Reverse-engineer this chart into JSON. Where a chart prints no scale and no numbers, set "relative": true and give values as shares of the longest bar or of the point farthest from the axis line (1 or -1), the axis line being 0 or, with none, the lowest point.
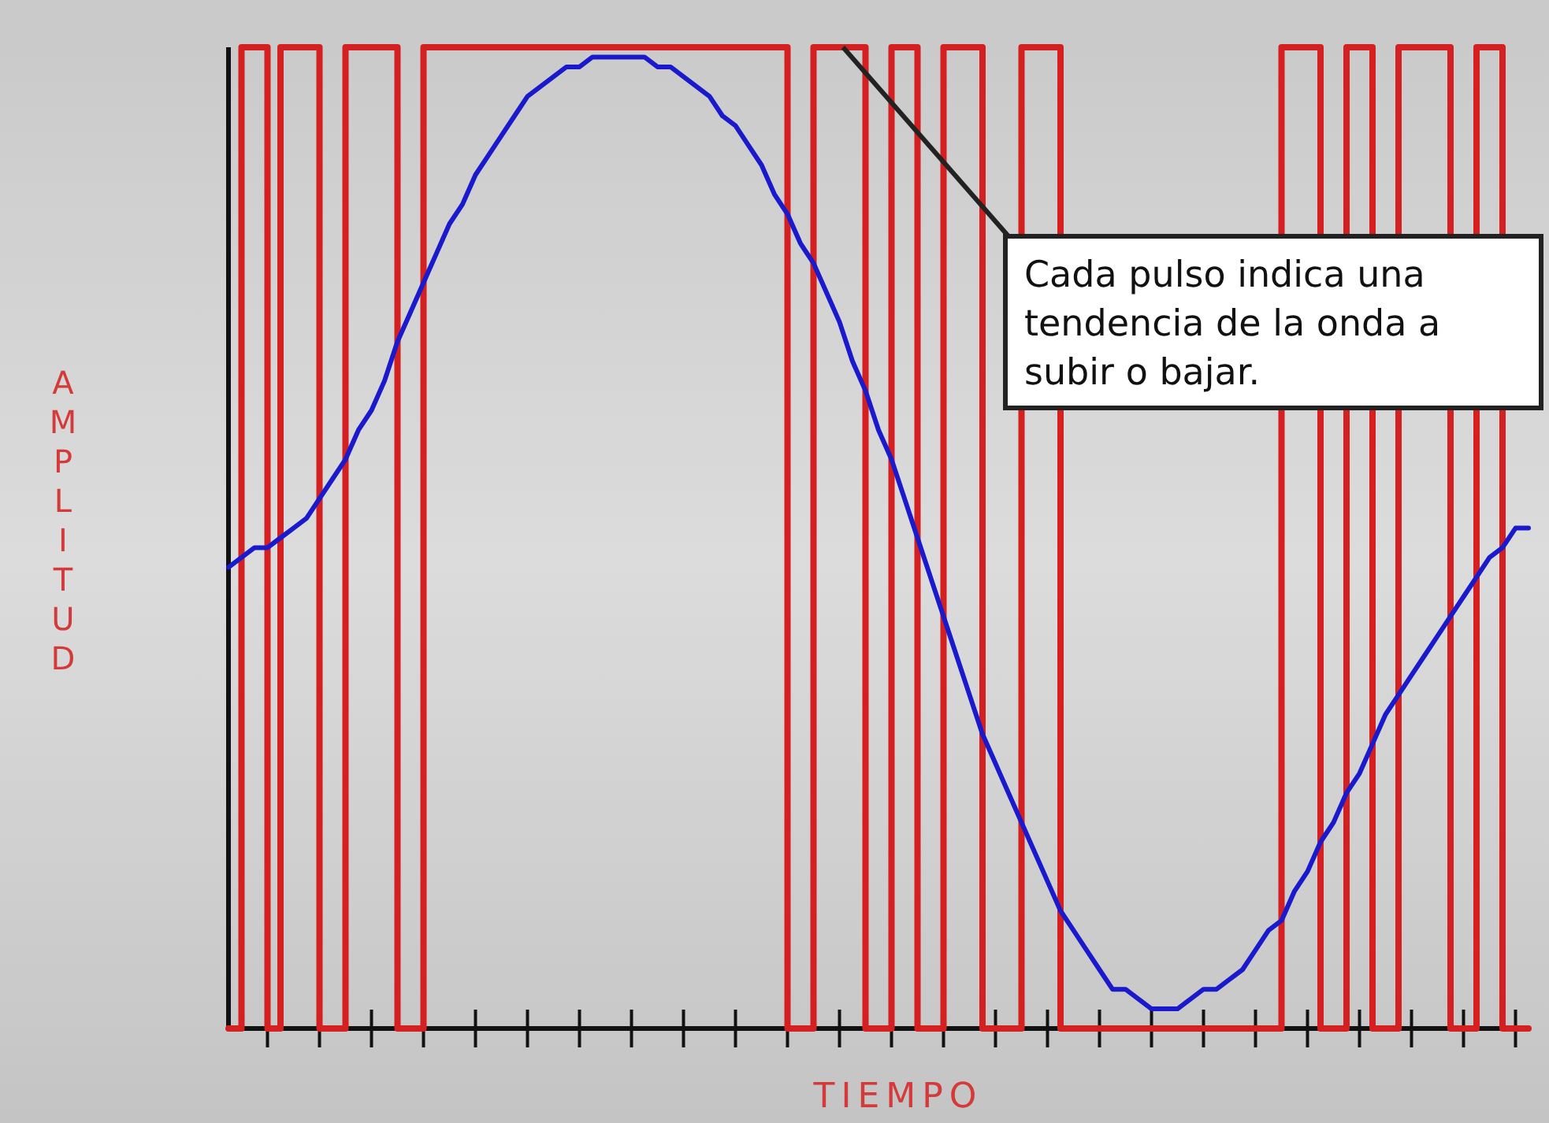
{
  "chart_data": {
    "type": "line",
    "relative": true,
    "xlabel": "TIEMPO",
    "ylabel": "AMPLITUD",
    "grid": false,
    "categories": [
      null,
      null,
      null,
      null,
      null,
      null,
      null,
      null,
      null,
      null,
      null,
      null,
      null,
      null,
      null,
      null,
      null,
      null,
      null,
      null,
      null,
      null,
      null,
      null,
      null,
      null,
      null,
      null,
      null,
      null,
      null,
      null,
      null,
      null,
      null,
      null,
      null,
      null,
      null,
      null,
      null,
      null,
      null,
      null,
      null,
      null,
      null,
      null,
      null,
      null,
      null,
      null,
      null,
      null,
      null,
      null,
      null,
      null,
      null,
      null,
      null,
      null,
      null,
      null,
      null,
      null,
      null,
      null,
      null,
      null,
      null,
      null,
      null,
      null,
      null,
      null,
      null,
      null,
      null,
      null,
      null,
      null,
      null,
      null,
      null,
      null,
      null,
      null,
      null,
      null,
      null,
      null,
      null,
      null,
      null,
      null,
      null,
      null,
      null,
      null,
      null
    ],
    "annotations": [
      "Cada pulso indica una tendencia de la onda a subir o bajar."
    ],
    "series": [
      {
        "type": "step",
        "color": "#d42020",
        "values": [
          0,
          1,
          1,
          0,
          1,
          1,
          1,
          0,
          0,
          1,
          1,
          1,
          1,
          0,
          0,
          1,
          1,
          1,
          1,
          1,
          1,
          1,
          1,
          1,
          1,
          1,
          1,
          1,
          1,
          1,
          1,
          1,
          1,
          1,
          1,
          1,
          1,
          1,
          1,
          1,
          1,
          1,
          1,
          0,
          0,
          1,
          1,
          1,
          1,
          0,
          0,
          1,
          1,
          0,
          0,
          1,
          1,
          1,
          0,
          0,
          0,
          1,
          1,
          1,
          0,
          0,
          0,
          0,
          0,
          0,
          0,
          0,
          0,
          0,
          0,
          0,
          0,
          0,
          0,
          0,
          0,
          1,
          1,
          1,
          0,
          0,
          1,
          1,
          0,
          0,
          1,
          1,
          1,
          1,
          0,
          0,
          1,
          1,
          0,
          0,
          0
        ]
      },
      {
        "color": "#1a1acc",
        "values": [
          0.47,
          0.48,
          0.49,
          0.49,
          0.5,
          0.51,
          0.52,
          0.54,
          0.56,
          0.58,
          0.61,
          0.63,
          0.66,
          0.7,
          0.73,
          0.76,
          0.79,
          0.82,
          0.84,
          0.87,
          0.89,
          0.91,
          0.93,
          0.95,
          0.96,
          0.97,
          0.98,
          0.98,
          0.99,
          0.99,
          0.99,
          0.99,
          0.99,
          0.98,
          0.98,
          0.97,
          0.96,
          0.95,
          0.93,
          0.92,
          0.9,
          0.88,
          0.85,
          0.83,
          0.8,
          0.78,
          0.75,
          0.72,
          0.68,
          0.65,
          0.61,
          0.58,
          0.54,
          0.5,
          0.46,
          0.42,
          0.38,
          0.34,
          0.3,
          0.27,
          0.24,
          0.21,
          0.18,
          0.15,
          0.12,
          0.1,
          0.08,
          0.06,
          0.04,
          0.04,
          0.03,
          0.02,
          0.02,
          0.02,
          0.03,
          0.04,
          0.04,
          0.05,
          0.06,
          0.08,
          0.1,
          0.11,
          0.14,
          0.16,
          0.19,
          0.21,
          0.24,
          0.26,
          0.29,
          0.32,
          0.34,
          0.36,
          0.38,
          0.4,
          0.42,
          0.44,
          0.46,
          0.48,
          0.49,
          0.51,
          0.51
        ]
      }
    ]
  }
}
